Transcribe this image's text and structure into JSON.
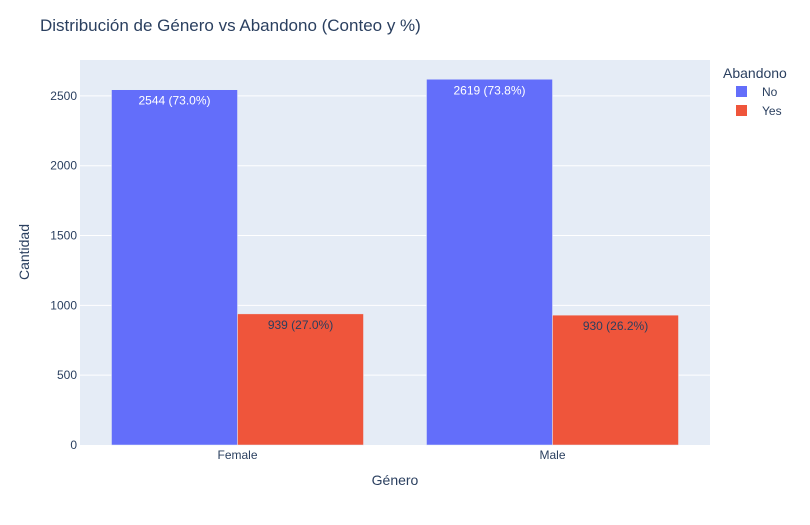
{
  "chart_data": {
    "type": "bar",
    "title": "Distribución de Género vs Abandono (Conteo y %)",
    "xlabel": "Género",
    "ylabel": "Cantidad",
    "categories": [
      "Female",
      "Male"
    ],
    "ylim": [
      0,
      2757
    ],
    "yticks": [
      0,
      500,
      1000,
      1500,
      2000,
      2500
    ],
    "grid": true,
    "legend_title": "Abandono",
    "legend_position": "top-right",
    "series": [
      {
        "name": "No",
        "color": "#636efa",
        "values": [
          2544,
          2619
        ],
        "labels": [
          "2544 (73.0%)",
          "2619 (73.8%)"
        ],
        "label_color": "#ffffff"
      },
      {
        "name": "Yes",
        "color": "#ef553b",
        "values": [
          939,
          930
        ],
        "labels": [
          "939 (27.0%)",
          "930 (26.2%)"
        ],
        "label_color": "#2a3f5f"
      }
    ],
    "plot_background": "#e5ecf6"
  }
}
